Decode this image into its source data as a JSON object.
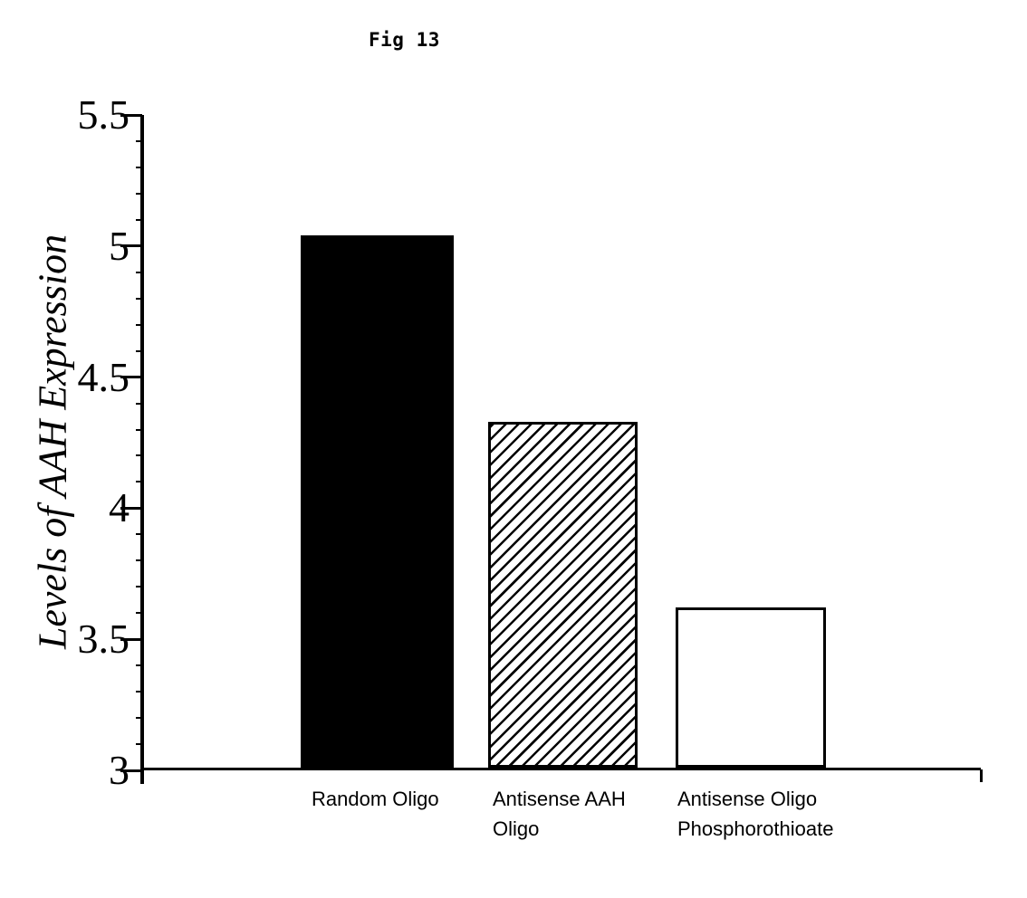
{
  "figure": {
    "title": "Fig 13"
  },
  "chart_data": {
    "type": "bar",
    "title": "Fig 13",
    "xlabel": "",
    "ylabel": "Levels of AAH Expression",
    "ylim": [
      3,
      5.5
    ],
    "yticks": [
      5.5,
      5,
      4.5,
      4,
      3.5,
      3
    ],
    "ytick_labels": [
      "5.5",
      "5",
      "4.5",
      "4",
      "3.5",
      "3"
    ],
    "minor_tick_step": 0.1,
    "grid": false,
    "legend_position": "none",
    "categories": [
      "Random Oligo",
      "Antisense AAH Oligo",
      "Antisense Oligo Phosphorothioate"
    ],
    "category_label_lines": [
      [
        "Random Oligo"
      ],
      [
        "Antisense AAH",
        "Oligo"
      ],
      [
        "Antisense Oligo",
        "Phosphorothioate"
      ]
    ],
    "values": [
      5.03,
      4.32,
      3.61
    ],
    "bar_styles": [
      "solid-black",
      "diagonal-hatch",
      "white-outline"
    ],
    "colors": {
      "ink": "#000000",
      "background": "#ffffff",
      "bar_fill_solid": "#000000",
      "bar_fill_open": "#ffffff"
    }
  }
}
